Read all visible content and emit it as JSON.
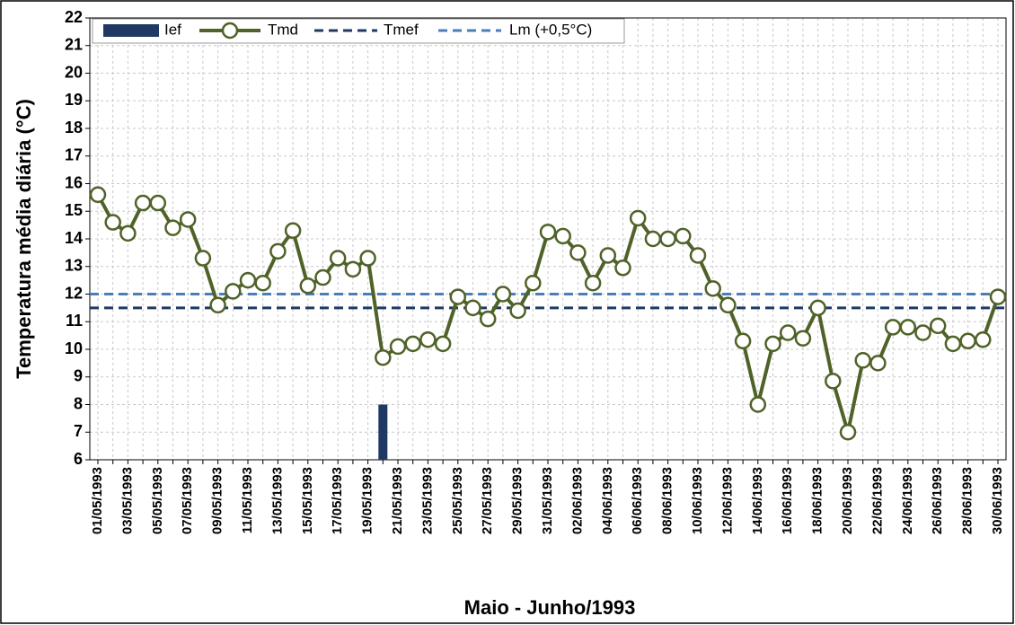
{
  "chart_data": {
    "type": "line",
    "xlabel": "Maio - Junho/1993",
    "ylabel": "Temperatura média diária (°C)",
    "categories": [
      "01/05/1993",
      null,
      "03/05/1993",
      null,
      "05/05/1993",
      null,
      "07/05/1993",
      null,
      "09/05/1993",
      null,
      "11/05/1993",
      null,
      "13/05/1993",
      null,
      "15/05/1993",
      null,
      "17/05/1993",
      null,
      "19/05/1993",
      null,
      "21/05/1993",
      null,
      "23/05/1993",
      null,
      "25/05/1993",
      null,
      "27/05/1993",
      null,
      "29/05/1993",
      null,
      "31/05/1993",
      null,
      "02/06/1993",
      null,
      "04/06/1993",
      null,
      "06/06/1993",
      null,
      "08/06/1993",
      null,
      "10/06/1993",
      null,
      "12/06/1993",
      null,
      "14/06/1993",
      null,
      "16/06/1993",
      null,
      "18/06/1993",
      null,
      "20/06/1993",
      null,
      "22/06/1993",
      null,
      "24/06/1993",
      null,
      "26/06/1993",
      null,
      "28/06/1993",
      null,
      "30/06/1993"
    ],
    "series": [
      {
        "name": "Ief",
        "kind": "bar",
        "color": "#1f3864",
        "values": [
          null,
          null,
          null,
          null,
          null,
          null,
          null,
          null,
          null,
          null,
          null,
          null,
          null,
          null,
          null,
          null,
          null,
          null,
          null,
          8,
          null,
          null,
          null,
          null,
          null,
          null,
          null,
          null,
          null,
          null,
          null,
          null,
          null,
          null,
          null,
          null,
          null,
          null,
          null,
          null,
          null,
          null,
          null,
          null,
          null,
          null,
          null,
          null,
          null,
          null,
          null,
          null,
          null,
          null,
          null,
          null,
          null,
          null,
          null,
          null,
          null
        ]
      },
      {
        "name": "Tmd",
        "kind": "line",
        "color": "#4f6228",
        "values": [
          15.6,
          14.6,
          14.2,
          15.3,
          15.3,
          14.4,
          14.7,
          13.3,
          11.6,
          12.1,
          12.5,
          12.4,
          13.55,
          14.3,
          12.3,
          12.6,
          13.3,
          12.9,
          13.3,
          9.7,
          10.1,
          10.2,
          10.35,
          10.2,
          11.9,
          11.5,
          11.1,
          12.0,
          11.4,
          12.4,
          14.25,
          14.1,
          13.5,
          12.4,
          13.4,
          12.95,
          14.75,
          14.0,
          14.0,
          14.1,
          13.4,
          12.2,
          11.6,
          10.3,
          8.0,
          10.2,
          10.6,
          10.4,
          11.5,
          8.85,
          7.0,
          9.6,
          9.5,
          10.8,
          10.8,
          10.6,
          10.85,
          10.2,
          10.3,
          10.35,
          11.9
        ]
      },
      {
        "name": "Tmef",
        "kind": "hline",
        "color": "#1f3864",
        "value": 11.5
      },
      {
        "name": "Lm (+0,5°C)",
        "kind": "hline",
        "color": "#4a7ebb",
        "value": 12.0
      }
    ],
    "ylim": [
      6,
      22
    ],
    "yticks": [
      6,
      7,
      8,
      9,
      10,
      11,
      12,
      13,
      14,
      15,
      16,
      17,
      18,
      19,
      20,
      21,
      22
    ],
    "grid": true,
    "legend": "top"
  }
}
